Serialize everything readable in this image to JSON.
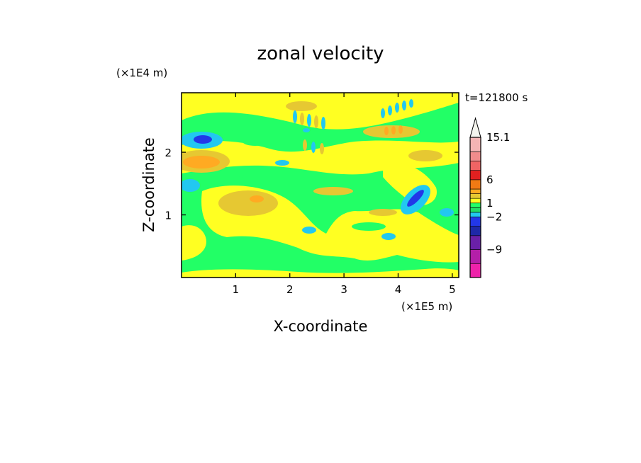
{
  "chart_data": {
    "type": "heatmap",
    "title": "zonal velocity",
    "xlabel": "X-coordinate",
    "ylabel": "Z-coordinate",
    "x_unit": "(×1E5 m)",
    "y_unit": "(×1E4 m)",
    "time_label": "t=121800 s",
    "x_ticks": [
      1,
      2,
      3,
      4,
      5
    ],
    "y_ticks": [
      1,
      2
    ],
    "xlim": [
      0,
      5.12
    ],
    "ylim": [
      0,
      2.95
    ],
    "colorbar": {
      "labels": [
        "15.1",
        "6",
        "1",
        "−2",
        "−9"
      ],
      "label_values": [
        15.1,
        6,
        1,
        -2,
        -9
      ],
      "range": [
        -15,
        15.1
      ],
      "levels": [
        {
          "from": -15,
          "to": -12,
          "color": "#ee22aa"
        },
        {
          "from": -12,
          "to": -9,
          "color": "#b41fa8"
        },
        {
          "from": -9,
          "to": -6,
          "color": "#6a20a8"
        },
        {
          "from": -6,
          "to": -4,
          "color": "#1e28a8"
        },
        {
          "from": -4,
          "to": -2,
          "color": "#2237e8"
        },
        {
          "from": -2,
          "to": -1,
          "color": "#22c8f0"
        },
        {
          "from": -1,
          "to": 0,
          "color": "#22dd66"
        },
        {
          "from": 0,
          "to": 1,
          "color": "#22ff66"
        },
        {
          "from": 1,
          "to": 2,
          "color": "#ffff22"
        },
        {
          "from": 2,
          "to": 3,
          "color": "#e6c832"
        },
        {
          "from": 3,
          "to": 4,
          "color": "#ffaa22"
        },
        {
          "from": 4,
          "to": 6,
          "color": "#f07a14"
        },
        {
          "from": 6,
          "to": 8,
          "color": "#e02020"
        },
        {
          "from": 8,
          "to": 10,
          "color": "#f06464"
        },
        {
          "from": 10,
          "to": 12,
          "color": "#f08c8c"
        },
        {
          "from": 12,
          "to": 15.1,
          "color": "#f4b4b4"
        }
      ],
      "overflow_arrow_color": "#f4f4ee"
    },
    "field_features": [
      {
        "x": 0.35,
        "z": 2.2,
        "value": -5,
        "note": "blue core"
      },
      {
        "x": 0.35,
        "z": 1.85,
        "value": 3.5
      },
      {
        "x": 1.35,
        "z": 1.3,
        "value": 3
      },
      {
        "x": 4.4,
        "z": 1.3,
        "value": -5
      },
      {
        "x": 0.15,
        "z": 1.5,
        "value": -1.5
      },
      {
        "x": 4.2,
        "z": 2.35,
        "value": 3
      }
    ]
  }
}
